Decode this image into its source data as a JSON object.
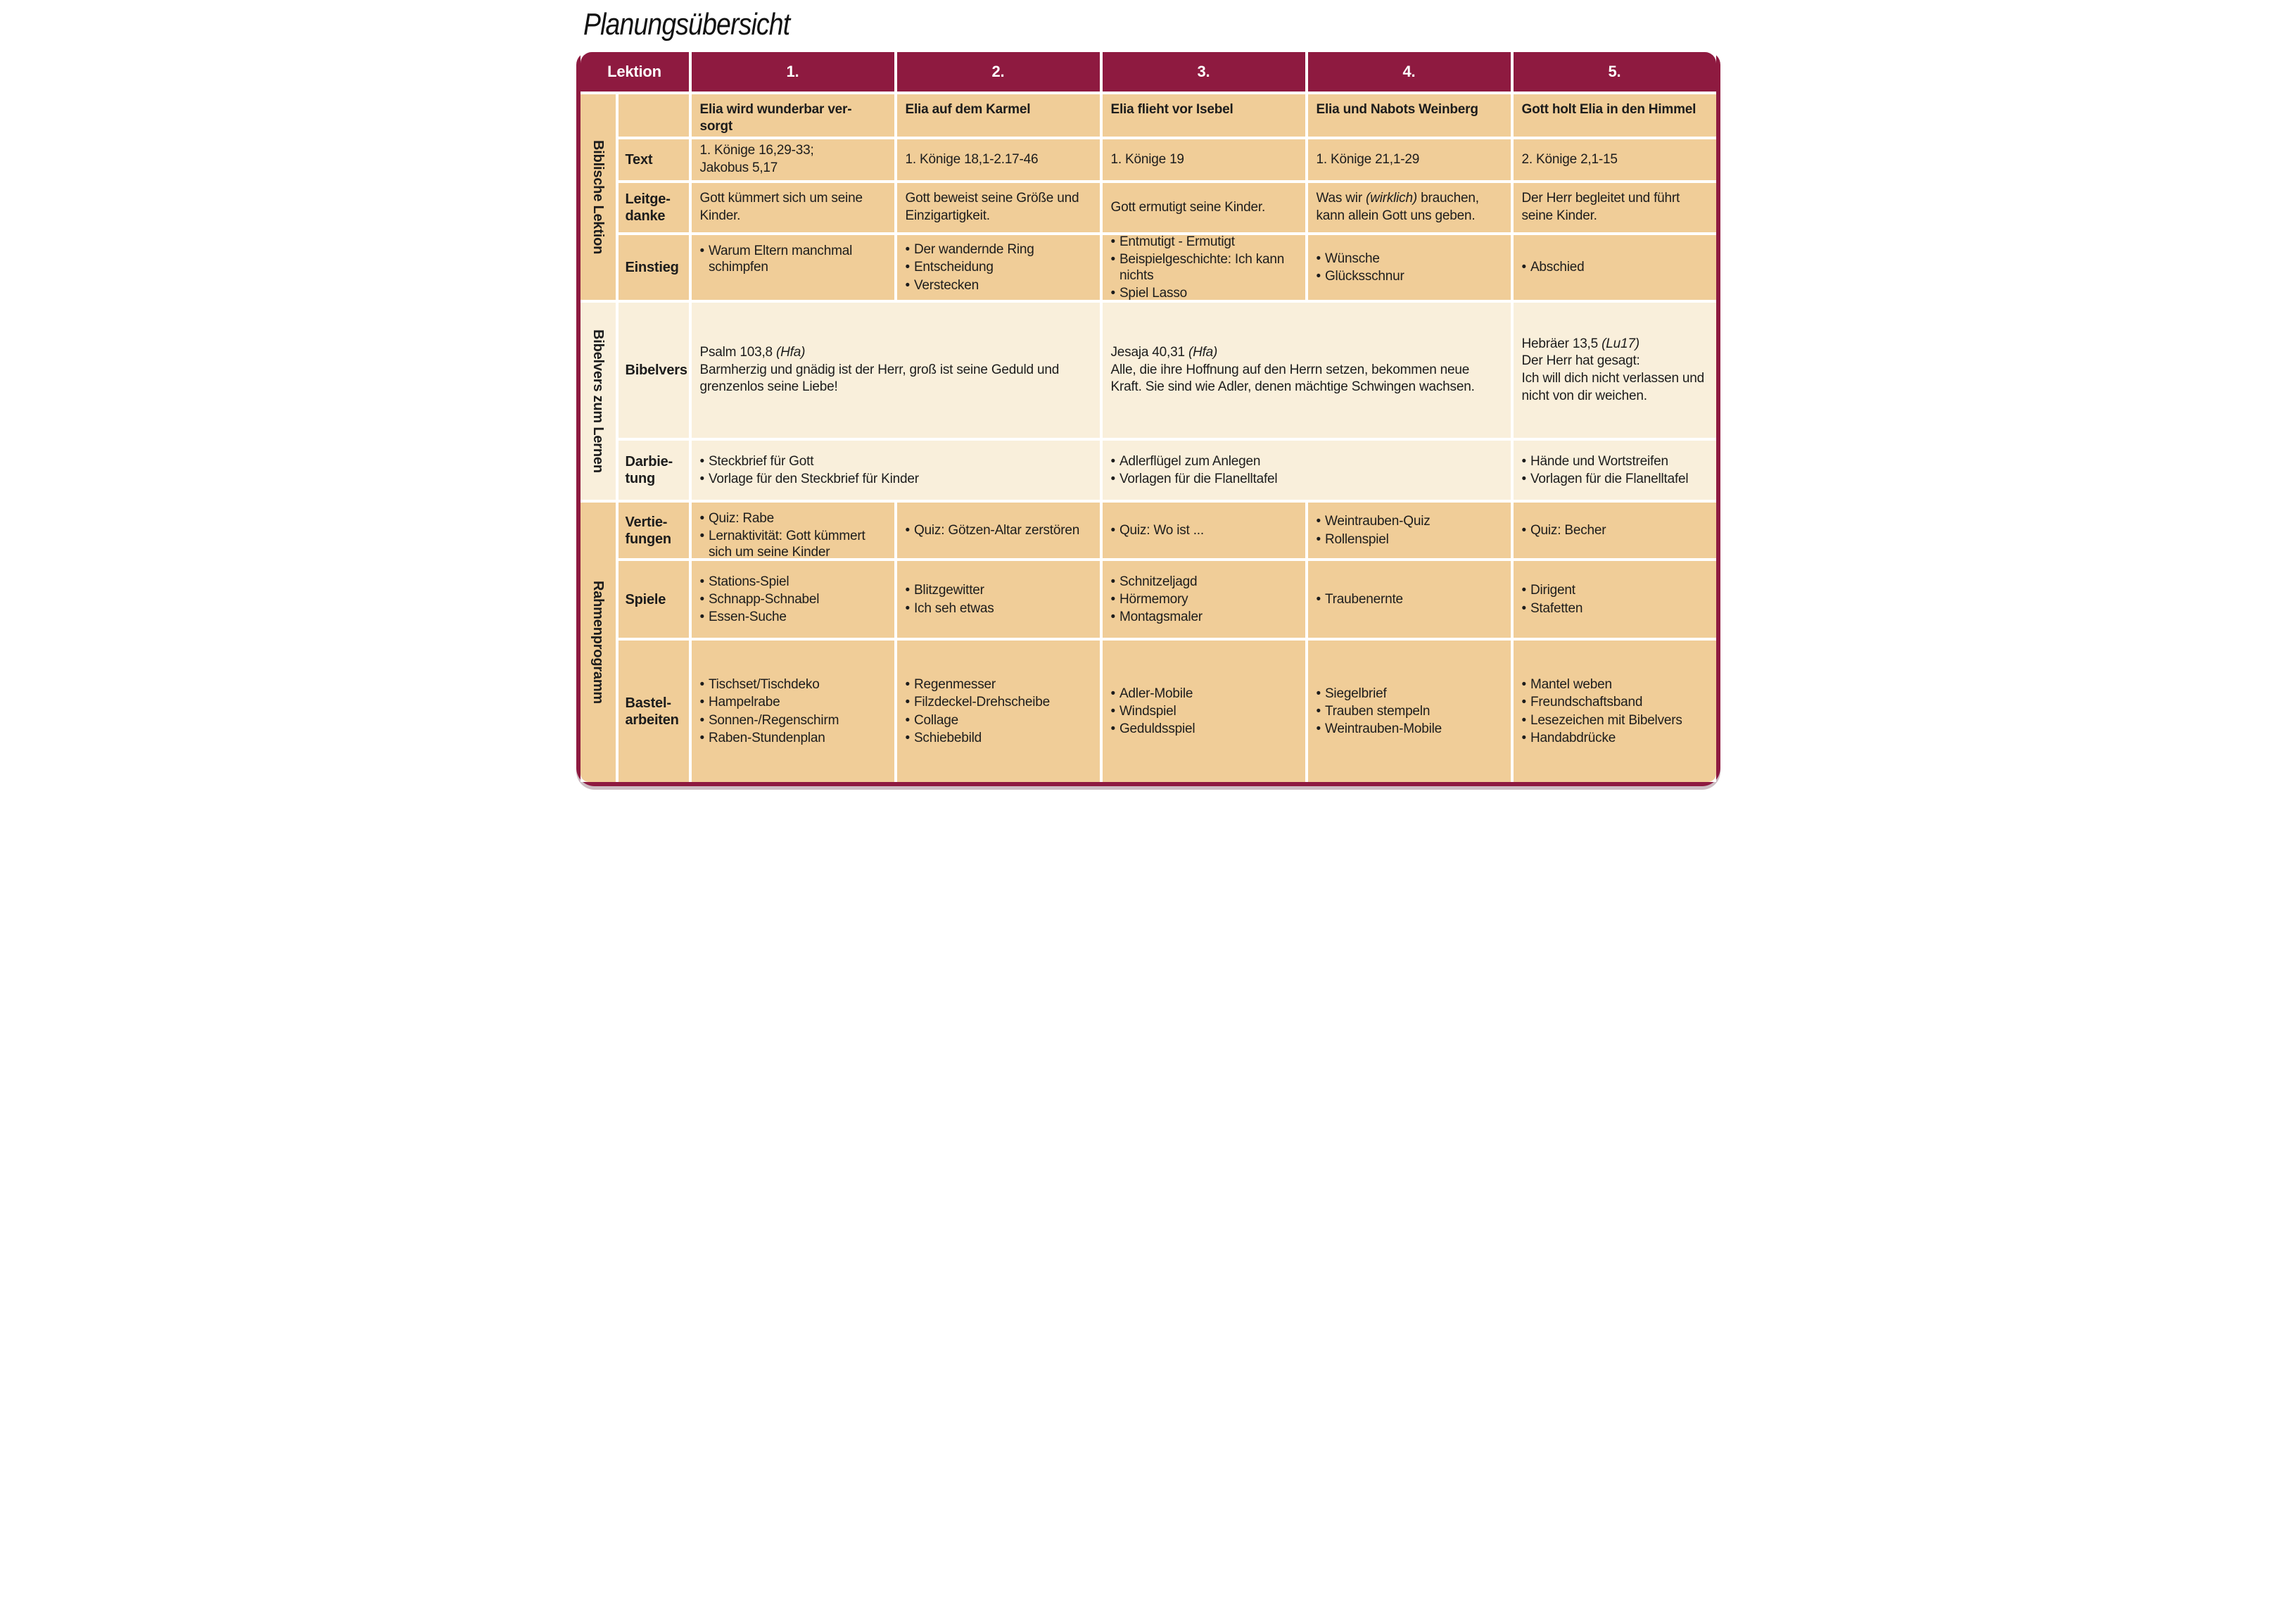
{
  "page_title": "Planungsübersicht",
  "colors": {
    "maroon": "#8e1a40",
    "tan": "#f0cd98",
    "cream": "#f9efdb"
  },
  "table": {
    "corner_label": "Lektion",
    "columns": [
      "1.",
      "2.",
      "3.",
      "4.",
      "5."
    ],
    "groups": {
      "biblische_lektion": "Biblische Lektion",
      "bibelvers_zum_lernen": "Bibelvers zum Lernen",
      "rahmenprogramm": "Rahmenprogramm"
    },
    "row_labels": {
      "text": "Text",
      "leitgedanke": "Leitge-\ndanke",
      "einstieg": "Einstieg",
      "bibelvers": "Bibelvers",
      "darbietung": "Darbie-\ntung",
      "vertiefungen": "Vertie-\nfungen",
      "spiele": "Spiele",
      "bastelarbeiten": "Bastel-\narbeiten"
    },
    "lesson_titles": [
      "Elia wird wunderbar ver-\nsorgt",
      "Elia auf dem Karmel",
      "Elia flieht vor Isebel",
      "Elia und Nabots Weinberg",
      "Gott holt Elia in den Himmel"
    ],
    "text_row": [
      "1. Könige 16,29-33;\nJakobus 5,17",
      "1. Könige 18,1-2.17-46",
      "1. Könige 19",
      "1. Könige 21,1-29",
      "2. Könige 2,1-15"
    ],
    "leitgedanke_row": [
      "Gott kümmert sich um seine Kinder.",
      "Gott beweist seine Größe und Einzigartigkeit.",
      "Gott ermutigt seine Kinder.",
      {
        "pre": "Was wir",
        "italic": "(wirklich)",
        "post": "brauchen, kann allein Gott uns geben."
      },
      "Der Herr begleitet und führt seine Kinder."
    ],
    "einstieg_row": [
      [
        "Warum Eltern manchmal schimpfen"
      ],
      [
        "Der wandernde Ring",
        "Entscheidung",
        "Verstecken"
      ],
      [
        "Entmutigt - Ermutigt",
        "Beispielgeschichte: Ich kann nichts",
        "Spiel Lasso"
      ],
      [
        "Wünsche",
        "Glücksschnur"
      ],
      [
        "Abschied"
      ]
    ],
    "bibelvers_row": [
      {
        "ref": "Psalm 103,8",
        "version": "(Hfa)",
        "text": "Barmherzig und gnädig ist der Herr, groß ist seine Geduld und grenzenlos seine Liebe!"
      },
      {
        "ref": "Jesaja 40,31",
        "version": "(Hfa)",
        "text": "Alle, die ihre Hoffnung auf den Herrn setzen, bekommen neue Kraft. Sie sind wie Adler, denen mächtige Schwingen wachsen."
      },
      {
        "ref": "Hebräer 13,5",
        "version": "(Lu17)",
        "text": "Der Herr hat gesagt:\nIch will dich nicht verlassen und nicht von dir weichen."
      }
    ],
    "darbietung_row": [
      [
        "Steckbrief für Gott",
        "Vorlage für den Steckbrief für Kinder"
      ],
      [
        "Adlerflügel zum Anlegen",
        "Vorlagen für die Flanelltafel"
      ],
      [
        "Hände und Wortstreifen",
        "Vorlagen für die Flanelltafel"
      ]
    ],
    "vertiefungen_row": [
      [
        "Quiz: Rabe",
        "Lernaktivität: Gott kümmert sich um seine Kinder"
      ],
      [
        "Quiz: Götzen-Altar zerstören"
      ],
      [
        "Quiz: Wo ist ..."
      ],
      [
        "Weintrauben-Quiz",
        "Rollenspiel"
      ],
      [
        "Quiz: Becher"
      ]
    ],
    "spiele_row": [
      [
        "Stations-Spiel",
        "Schnapp-Schnabel",
        "Essen-Suche"
      ],
      [
        "Blitzgewitter",
        "Ich seh etwas"
      ],
      [
        "Schnitzeljagd",
        "Hörmemory",
        "Montagsmaler"
      ],
      [
        "Traubenernte"
      ],
      [
        "Dirigent",
        "Stafetten"
      ]
    ],
    "bastelarbeiten_row": [
      [
        "Tischset/Tischdeko",
        "Hampelrabe",
        "Sonnen-/Regenschirm",
        "Raben-Stundenplan"
      ],
      [
        "Regenmesser",
        "Filzdeckel-Drehscheibe",
        "Collage",
        "Schiebebild"
      ],
      [
        "Adler-Mobile",
        "Windspiel",
        "Geduldsspiel"
      ],
      [
        "Siegelbrief",
        "Trauben stempeln",
        "Weintrauben-Mobile"
      ],
      [
        "Mantel weben",
        "Freundschaftsband",
        "Lesezeichen mit Bibelvers",
        "Handabdrücke"
      ]
    ]
  }
}
